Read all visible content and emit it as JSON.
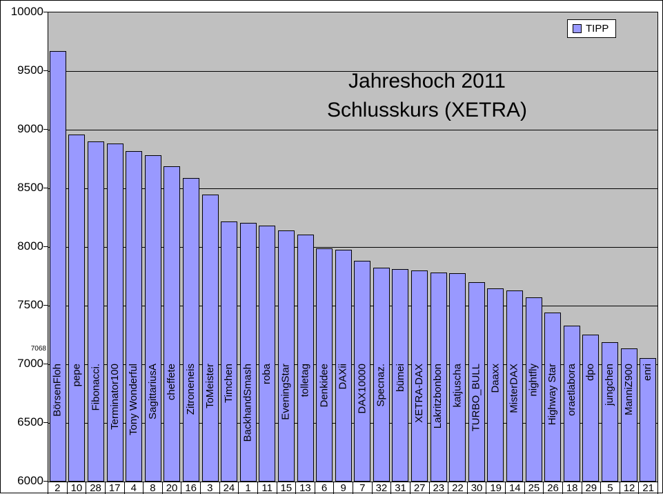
{
  "chart_data": {
    "type": "bar",
    "title_lines": [
      "Jahreshoch 2011",
      "Schlusskurs (XETRA)"
    ],
    "legend": {
      "label": "TIPP",
      "position": "top-right"
    },
    "y_axis": {
      "min": 6000,
      "max": 10000,
      "tick_interval": 500,
      "tick_labels": [
        "10000",
        "9500",
        "9000",
        "8500",
        "8000",
        "7500",
        "7000",
        "6500",
        "6000"
      ]
    },
    "annotation": "7068",
    "categories": [
      "BörsenFloh",
      "pepe",
      "Fibonacci.",
      "Terminator100",
      "Tony Wonderful",
      "SagittariusA",
      "cheffete",
      "Zitroneneis",
      "ToMeister",
      "Timchen",
      "BackhandSmash",
      "roba",
      "EveningStar",
      "tolletag",
      "Denkidee",
      "DAXii",
      "DAX10000",
      "Specnaz.",
      "bümei",
      "XETRA-DAX",
      "Lakritzbonbon",
      "katjuscha",
      "TURBO_BULL",
      "Daaxx",
      "MisterDAX",
      "nightfly",
      "Highway Star",
      "oraetlabora",
      "dpo",
      "jungchen",
      "ManniZ900",
      "enri"
    ],
    "x_axis_numbers": [
      "2",
      "10",
      "28",
      "17",
      "4",
      "8",
      "20",
      "16",
      "3",
      "24",
      "1",
      "11",
      "15",
      "13",
      "6",
      "9",
      "7",
      "32",
      "31",
      "27",
      "23",
      "22",
      "30",
      "19",
      "14",
      "25",
      "26",
      "18",
      "29",
      "5",
      "12",
      "21"
    ],
    "series": [
      {
        "name": "TIPP",
        "values": [
          9670,
          8960,
          8900,
          8885,
          8820,
          8780,
          8690,
          8590,
          8450,
          8220,
          8205,
          8180,
          8140,
          8105,
          7990,
          7975,
          7885,
          7825,
          7810,
          7800,
          7785,
          7775,
          7700,
          7650,
          7630,
          7570,
          7440,
          7330,
          7255,
          7190,
          7135,
          7055
        ]
      }
    ],
    "grid": true,
    "colors": {
      "bar_fill": "#9999FF",
      "bar_border": "#000000",
      "plot_background": "#C0C0C0",
      "gridline": "#000000",
      "background": "#FFFFFF",
      "text": "#000000"
    }
  }
}
